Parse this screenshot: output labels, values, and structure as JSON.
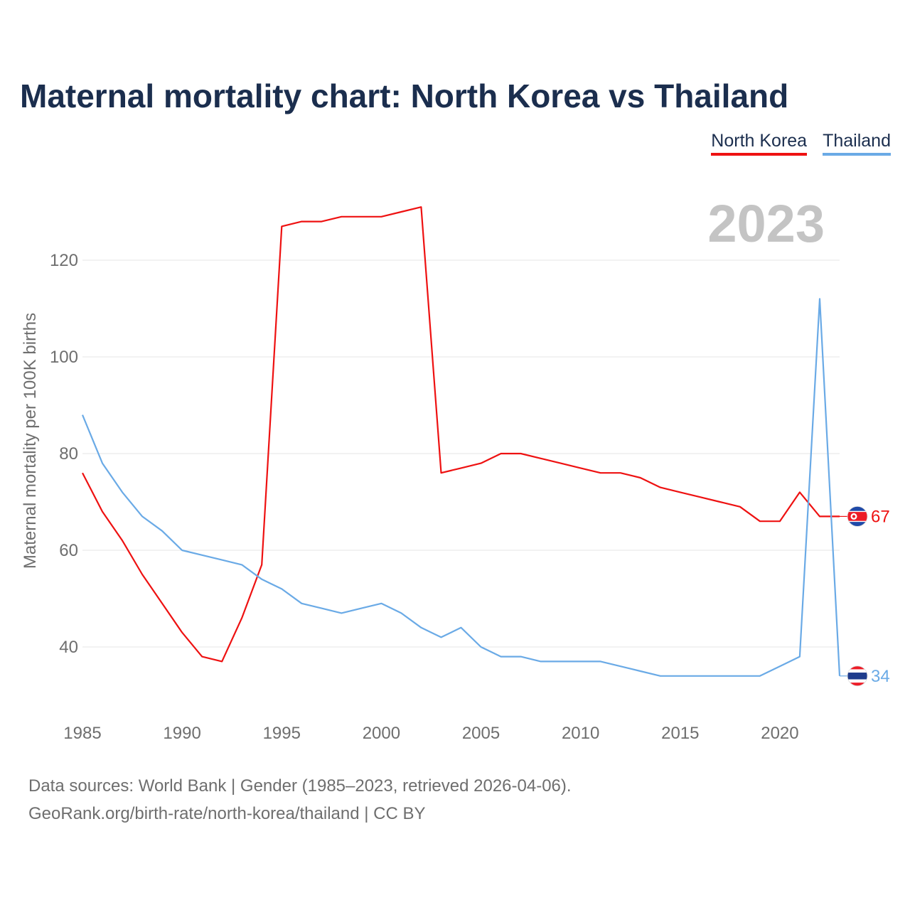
{
  "title": "Maternal mortality chart: North Korea vs Thailand",
  "year_label": "2023",
  "legend": {
    "north_korea": "North Korea",
    "thailand": "Thailand"
  },
  "footer": {
    "line1": "Data sources: World Bank | Gender (1985–2023, retrieved 2026-04-06).",
    "line2": "GeoRank.org/birth-rate/north-korea/thailand | CC BY"
  },
  "colors": {
    "north_korea": "#ee1111",
    "thailand": "#6aaae6",
    "title": "#1b2e4e"
  },
  "chart_data": {
    "type": "line",
    "title": "Maternal mortality chart: North Korea vs Thailand",
    "xlabel": "",
    "ylabel": "Maternal mortality per 100K births",
    "xlim": [
      1985,
      2023
    ],
    "ylim": [
      28,
      138
    ],
    "xticks": [
      1985,
      1990,
      1995,
      2000,
      2005,
      2010,
      2015,
      2020
    ],
    "yticks": [
      40,
      60,
      80,
      100,
      120
    ],
    "grid": true,
    "legend_position": "top-right",
    "x": [
      1985,
      1986,
      1987,
      1988,
      1989,
      1990,
      1991,
      1992,
      1993,
      1994,
      1995,
      1996,
      1997,
      1998,
      1999,
      2000,
      2001,
      2002,
      2003,
      2004,
      2005,
      2006,
      2007,
      2008,
      2009,
      2010,
      2011,
      2012,
      2013,
      2014,
      2015,
      2016,
      2017,
      2018,
      2019,
      2020,
      2021,
      2022,
      2023
    ],
    "series": [
      {
        "name": "North Korea",
        "color": "#ee1111",
        "end_label": "67",
        "values": [
          76,
          68,
          62,
          55,
          49,
          43,
          38,
          37,
          46,
          57,
          127,
          128,
          128,
          129,
          129,
          129,
          130,
          131,
          76,
          77,
          78,
          80,
          80,
          79,
          78,
          77,
          76,
          76,
          75,
          73,
          72,
          71,
          70,
          69,
          66,
          66,
          72,
          67,
          67
        ]
      },
      {
        "name": "Thailand",
        "color": "#6aaae6",
        "end_label": "34",
        "values": [
          88,
          78,
          72,
          67,
          64,
          60,
          59,
          58,
          57,
          54,
          52,
          49,
          48,
          47,
          48,
          49,
          47,
          44,
          42,
          44,
          40,
          38,
          38,
          37,
          37,
          37,
          37,
          36,
          35,
          34,
          34,
          34,
          34,
          34,
          34,
          36,
          38,
          112,
          34
        ]
      }
    ]
  }
}
